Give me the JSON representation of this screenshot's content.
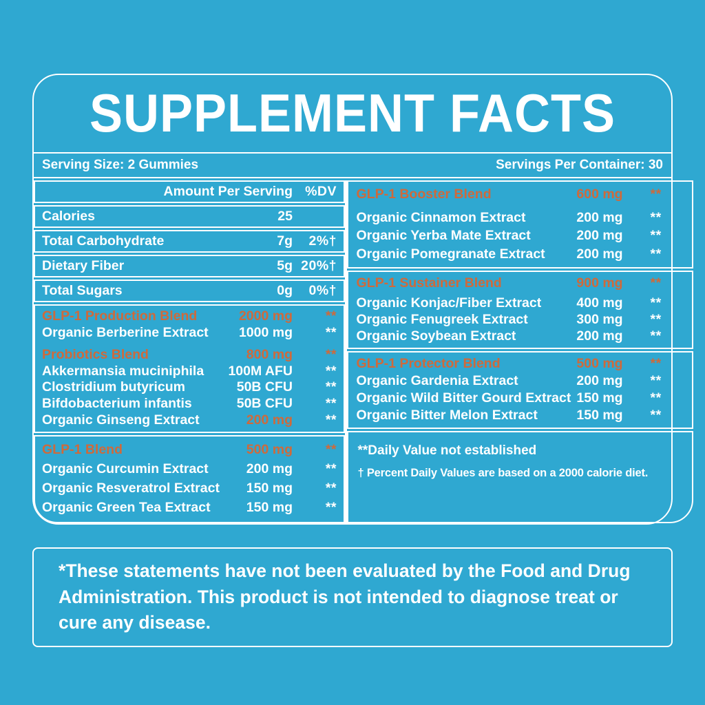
{
  "colors": {
    "background": "#2FA8D1",
    "accent_orange": "#CE6A3C",
    "text": "#FFFFFF",
    "border": "#FFFFFF"
  },
  "title": "SUPPLEMENT FACTS",
  "serving": {
    "size": "Serving Size: 2 Gummies",
    "per_container": "Servings Per Container: 30"
  },
  "nutrition": {
    "header": {
      "amount": "Amount Per Serving",
      "dv": "%DV"
    },
    "rows": [
      {
        "name": "Calories",
        "amount": "25",
        "dv": ""
      },
      {
        "name": "Total Carbohydrate",
        "amount": "7g",
        "dv": "2%†"
      },
      {
        "name": "Dietary Fiber",
        "amount": "5g",
        "dv": "20%†"
      },
      {
        "name": "Total Sugars",
        "amount": "0g",
        "dv": "0%†"
      }
    ]
  },
  "left_boxes": [
    {
      "sections": [
        {
          "header": {
            "name": "GLP-1 Production Blend",
            "amount": "2000 mg",
            "dv": "**"
          },
          "rows": [
            {
              "name": "Organic Berberine Extract",
              "amount": "1000 mg",
              "dv": "**"
            }
          ]
        },
        {
          "header": {
            "name": "Probiotics Blend",
            "amount": "800 mg",
            "dv": "**"
          },
          "rows": [
            {
              "name": "Akkermansia muciniphila",
              "amount": "100M AFU",
              "dv": "**"
            },
            {
              "name": "Clostridium butyricum",
              "amount": "50B CFU",
              "dv": "**"
            },
            {
              "name": "Bifdobacterium infantis",
              "amount": "50B CFU",
              "dv": "**"
            },
            {
              "name": "Organic Ginseng Extract",
              "amount": "200 mg",
              "dv": "**"
            }
          ]
        }
      ]
    },
    {
      "sections": [
        {
          "header": {
            "name": "GLP-1 Blend",
            "amount": "500 mg",
            "dv": "**"
          },
          "rows": [
            {
              "name": "Organic Curcumin Extract",
              "amount": "200 mg",
              "dv": "**"
            },
            {
              "name": "Organic Resveratrol Extract",
              "amount": "150 mg",
              "dv": "**"
            },
            {
              "name": "Organic Green Tea Extract",
              "amount": "150 mg",
              "dv": "**"
            }
          ]
        }
      ]
    }
  ],
  "right_boxes": [
    {
      "header": {
        "name": "GLP-1 Booster Blend",
        "amount": "600 mg",
        "dv": "**"
      },
      "rows": [
        {
          "name": "Organic Cinnamon Extract",
          "amount": "200 mg",
          "dv": "**"
        },
        {
          "name": "Organic Yerba Mate Extract",
          "amount": "200 mg",
          "dv": "**"
        },
        {
          "name": "Organic Pomegranate Extract",
          "amount": "200 mg",
          "dv": "**"
        }
      ]
    },
    {
      "header": {
        "name": "GLP-1 Sustainer Blend",
        "amount": "900 mg",
        "dv": "**"
      },
      "rows": [
        {
          "name": "Organic Konjac/Fiber Extract",
          "amount": "400 mg",
          "dv": "**"
        },
        {
          "name": "Organic Fenugreek Extract",
          "amount": "300 mg",
          "dv": "**"
        },
        {
          "name": "Organic Soybean Extract",
          "amount": "200 mg",
          "dv": "**"
        }
      ]
    },
    {
      "header": {
        "name": "GLP-1 Protector Blend",
        "amount": "500 mg",
        "dv": "**"
      },
      "rows": [
        {
          "name": "Organic Gardenia Extract",
          "amount": "200 mg",
          "dv": "**"
        },
        {
          "name": "Organic Wild Bitter Gourd Extract",
          "amount": "150 mg",
          "dv": "**"
        },
        {
          "name": "Organic Bitter Melon Extract",
          "amount": "150 mg",
          "dv": "**"
        }
      ]
    }
  ],
  "footnotes": {
    "dv_note": "**Daily Value not established",
    "percent_note": "† Percent Daily Values are based on a 2000 calorie diet."
  },
  "disclaimer": "*These statements have not been evaluated by the Food and Drug Administration. This product is not intended to diagnose treat or cure any disease."
}
